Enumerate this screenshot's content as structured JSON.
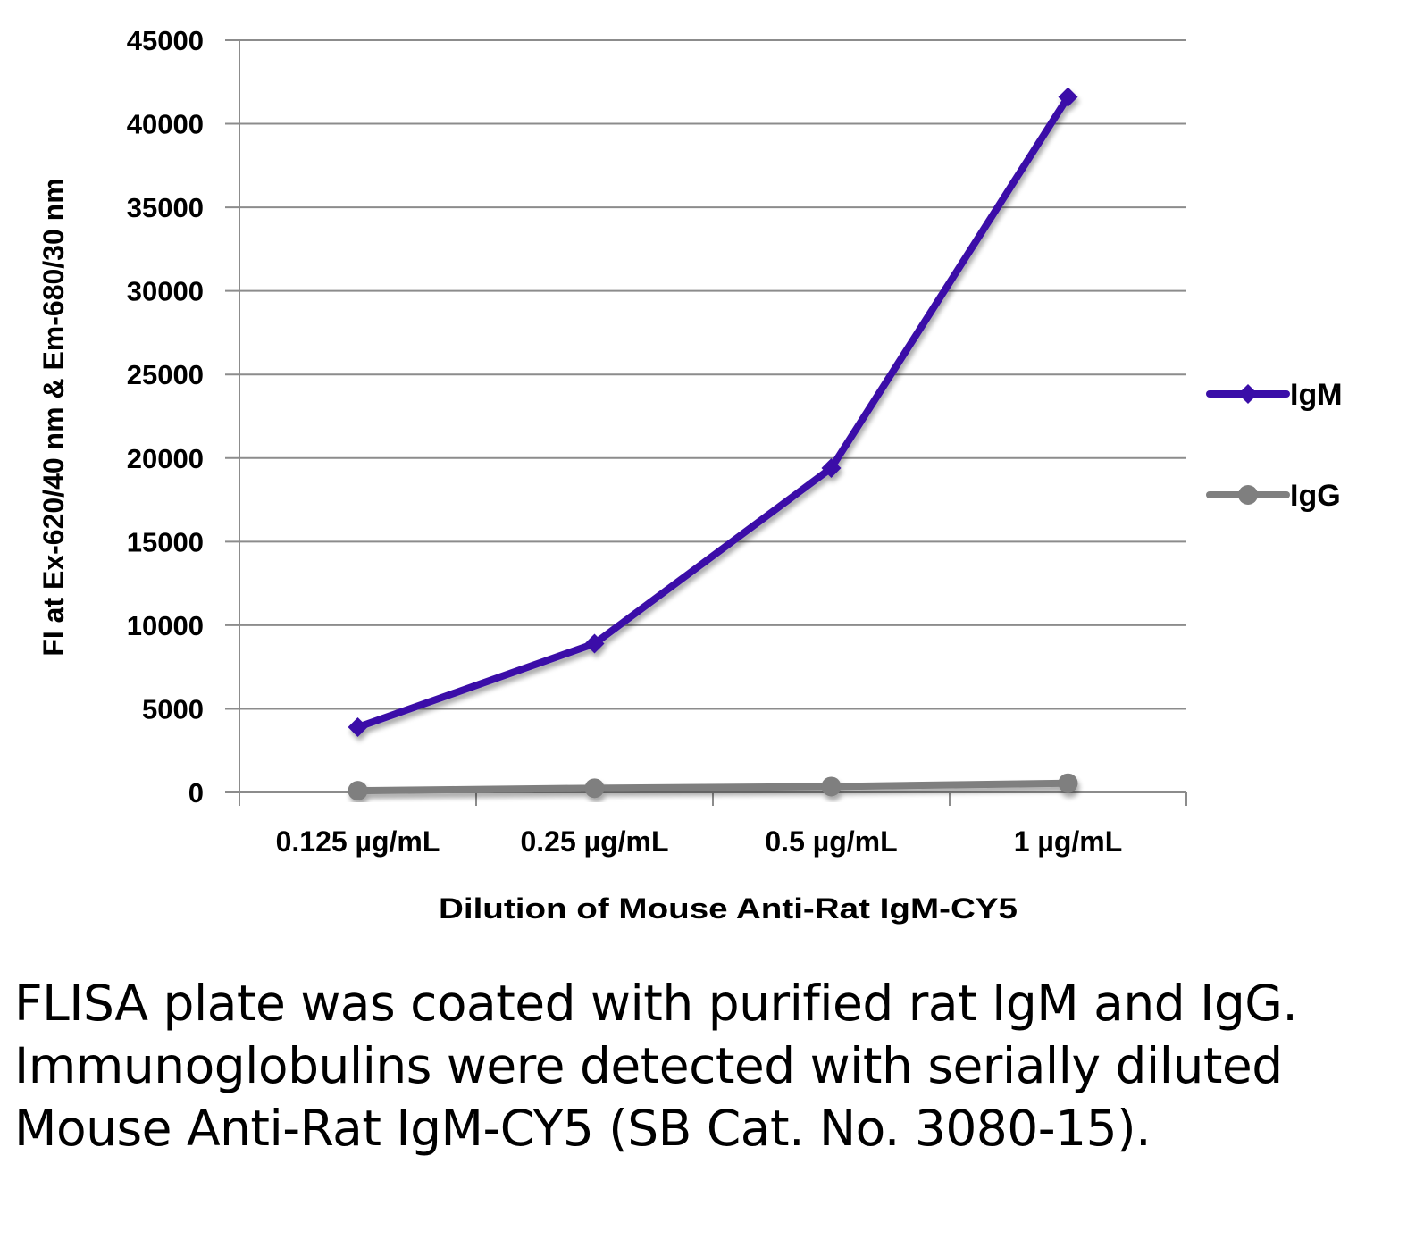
{
  "chart_data": {
    "type": "line",
    "categories": [
      "0.125 µg/mL",
      "0.25 µg/mL",
      "0.5 µg/mL",
      "1 µg/mL"
    ],
    "series": [
      {
        "name": "IgM",
        "values": [
          3900,
          8900,
          19400,
          41600
        ],
        "color": "#3a0ea8",
        "marker": "diamond"
      },
      {
        "name": "IgG",
        "values": [
          100,
          250,
          350,
          550
        ],
        "color": "#7f7f7f",
        "marker": "circle"
      }
    ],
    "ylim": [
      0,
      45000
    ],
    "yticks": [
      "0",
      "5000",
      "10000",
      "15000",
      "20000",
      "25000",
      "30000",
      "35000",
      "40000",
      "45000"
    ],
    "xlabel": "Dilution of Mouse Anti-Rat IgM-CY5",
    "ylabel": "FI at Ex-620/40 nm & Em-680/30 nm",
    "grid": true,
    "legend": "right"
  },
  "caption": "FLISA plate was coated with purified rat IgM and IgG.  Immunoglobulins were detected with serially diluted Mouse Anti-Rat IgM-CY5 (SB Cat. No. 3080-15)."
}
